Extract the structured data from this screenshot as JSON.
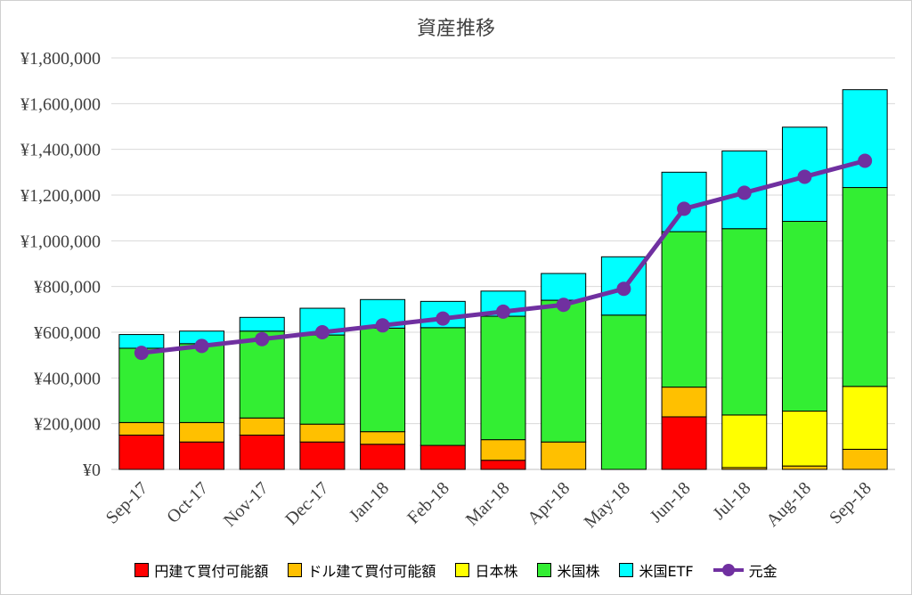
{
  "chart_data": {
    "type": "bar",
    "title": "資産推移",
    "categories": [
      "Sep-17",
      "Oct-17",
      "Nov-17",
      "Dec-17",
      "Jan-18",
      "Feb-18",
      "Mar-18",
      "Apr-18",
      "May-18",
      "Jun-18",
      "Jul-18",
      "Aug-18",
      "Sep-18"
    ],
    "ylim": [
      0,
      1800000
    ],
    "yticks": [
      "¥0",
      "¥200,000",
      "¥400,000",
      "¥600,000",
      "¥800,000",
      "¥1,000,000",
      "¥1,200,000",
      "¥1,400,000",
      "¥1,600,000",
      "¥1,800,000"
    ],
    "grid": true,
    "legend_position": "bottom",
    "series": [
      {
        "name": "円建て買付可能額",
        "type": "stacked-bar",
        "color": "#ff0000",
        "values": [
          150000,
          120000,
          150000,
          120000,
          110000,
          105000,
          40000,
          0,
          0,
          230000,
          0,
          0,
          0
        ]
      },
      {
        "name": "ドル建て買付可能額",
        "type": "stacked-bar",
        "color": "#ffc000",
        "values": [
          55000,
          85000,
          75000,
          78000,
          55000,
          0,
          90000,
          120000,
          0,
          130000,
          8000,
          15000,
          88000
        ]
      },
      {
        "name": "日本株",
        "type": "stacked-bar",
        "color": "#ffff00",
        "values": [
          0,
          0,
          0,
          0,
          0,
          0,
          0,
          0,
          0,
          0,
          230000,
          240000,
          275000
        ]
      },
      {
        "name": "米国株",
        "type": "stacked-bar",
        "color": "#33ee33",
        "values": [
          325000,
          345000,
          380000,
          390000,
          453000,
          515000,
          540000,
          620000,
          675000,
          680000,
          815000,
          830000,
          870000
        ]
      },
      {
        "name": "米国ETF",
        "type": "stacked-bar",
        "color": "#00ffff",
        "values": [
          60000,
          55000,
          60000,
          117000,
          125000,
          115000,
          110000,
          117000,
          255000,
          260000,
          340000,
          412000,
          428000
        ]
      },
      {
        "name": "元金",
        "type": "line",
        "color": "#7030a0",
        "values": [
          510000,
          540000,
          570000,
          600000,
          630000,
          660000,
          690000,
          720000,
          790000,
          1140000,
          1210000,
          1280000,
          1350000
        ]
      }
    ]
  }
}
